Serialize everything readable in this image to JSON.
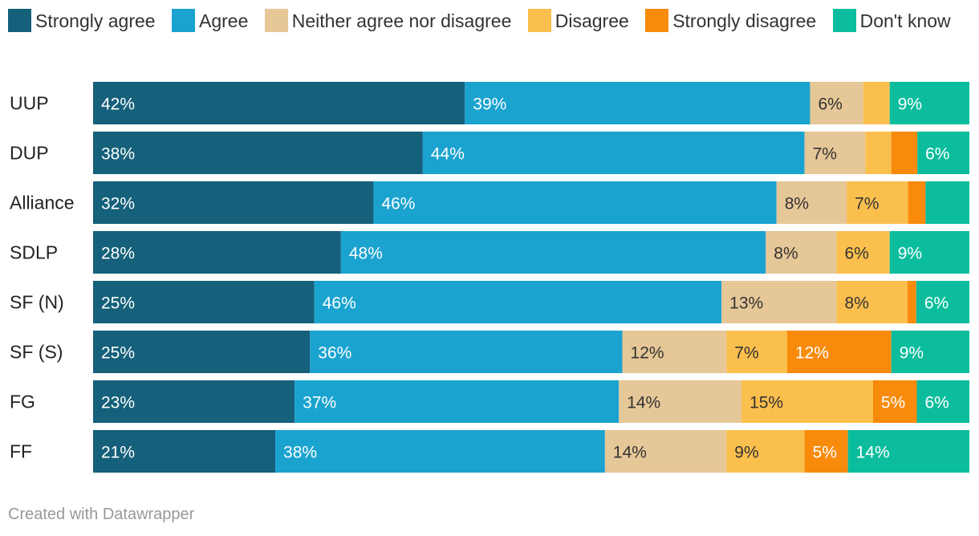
{
  "chart_data": {
    "type": "bar",
    "orientation": "horizontal",
    "stacked": true,
    "categories": [
      "UUP",
      "DUP",
      "Alliance",
      "SDLP",
      "SF (N)",
      "SF (S)",
      "FG",
      "FF"
    ],
    "series": [
      {
        "name": "Strongly agree",
        "color": "#15607a",
        "values": [
          42,
          38,
          32,
          28,
          25,
          25,
          23,
          21
        ],
        "labels": [
          "42%",
          "38%",
          "32%",
          "28%",
          "25%",
          "25%",
          "23%",
          "21%"
        ]
      },
      {
        "name": "Agree",
        "color": "#1ba3d0",
        "values": [
          39,
          44,
          46,
          48,
          46,
          36,
          37,
          38
        ],
        "labels": [
          "39%",
          "44%",
          "46%",
          "48%",
          "46%",
          "36%",
          "37%",
          "38%"
        ]
      },
      {
        "name": "Neither agree nor disagree",
        "color": "#e6c797",
        "values": [
          6,
          7,
          8,
          8,
          13,
          12,
          14,
          14
        ],
        "labels": [
          "6%",
          "7%",
          "8%",
          "8%",
          "13%",
          "12%",
          "14%",
          "14%"
        ]
      },
      {
        "name": "Disagree",
        "color": "#fbbf4e",
        "values": [
          3,
          3,
          7,
          6,
          8,
          7,
          15,
          9
        ],
        "labels": [
          "",
          "",
          "7%",
          "6%",
          "8%",
          "7%",
          "15%",
          "9%"
        ]
      },
      {
        "name": "Strongly disagree",
        "color": "#f88b0b",
        "values": [
          0,
          3,
          2,
          0,
          1,
          12,
          5,
          5
        ],
        "labels": [
          "",
          "",
          "",
          "",
          "",
          "12%",
          "5%",
          "5%"
        ]
      },
      {
        "name": "Don't know",
        "color": "#0bbd9d",
        "values": [
          9,
          6,
          5,
          9,
          6,
          9,
          6,
          14
        ],
        "labels": [
          "9%",
          "6%",
          "",
          "9%",
          "6%",
          "9%",
          "6%",
          "14%"
        ]
      }
    ],
    "legend_position": "top-left",
    "value_suffix": "%",
    "xlim": [
      0,
      100
    ]
  },
  "footer": {
    "credit": "Created with Datawrapper"
  }
}
